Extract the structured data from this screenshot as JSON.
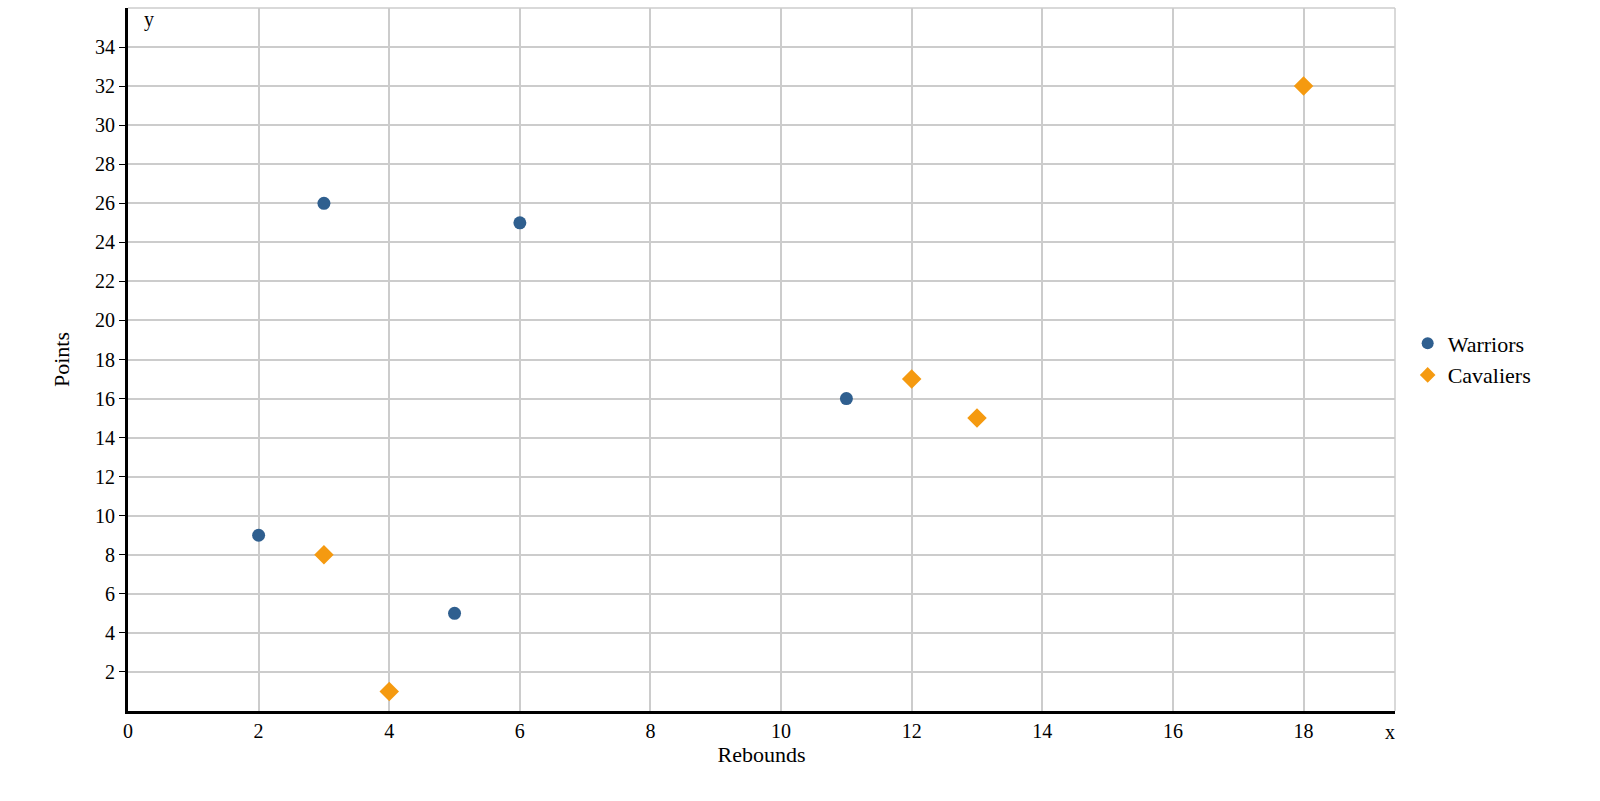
{
  "chart_data": {
    "type": "scatter",
    "x_label": "Rebounds",
    "y_label": "Points",
    "annotations": [
      "x",
      "y"
    ],
    "series": [
      {
        "name": "Warriors",
        "color": "#2f5f8f",
        "marker": "circle",
        "x": [
          2,
          3,
          5,
          6,
          11
        ],
        "values": [
          9,
          26,
          5,
          25,
          16
        ]
      },
      {
        "name": "Cavaliers",
        "color": "#f59a10",
        "marker": "diamond",
        "x": [
          3,
          4,
          12,
          13,
          18
        ],
        "values": [
          8,
          1,
          17,
          15,
          32
        ]
      }
    ],
    "xlim": [
      0,
      19.4
    ],
    "ylim": [
      0,
      36
    ],
    "xticks": [
      0,
      2,
      4,
      6,
      8,
      10,
      12,
      14,
      16,
      18
    ],
    "yticks": [
      2,
      4,
      6,
      8,
      10,
      12,
      14,
      16,
      18,
      20,
      22,
      24,
      26,
      28,
      30,
      32,
      34
    ],
    "grid": true,
    "legend": "right"
  }
}
